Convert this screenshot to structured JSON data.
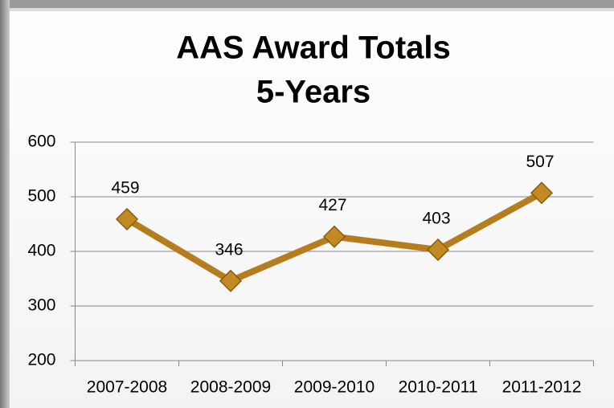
{
  "chart_data": {
    "type": "line",
    "title": [
      "AAS Award Totals",
      "5-Years"
    ],
    "categories": [
      "2007-2008",
      "2008-2009",
      "2009-2010",
      "2010-2011",
      "2011-2012"
    ],
    "values": [
      459,
      346,
      427,
      403,
      507
    ],
    "color": "#b67d1e",
    "ylim": [
      200,
      600
    ],
    "yticks": [
      200,
      300,
      400,
      500,
      600
    ],
    "grid": true
  }
}
